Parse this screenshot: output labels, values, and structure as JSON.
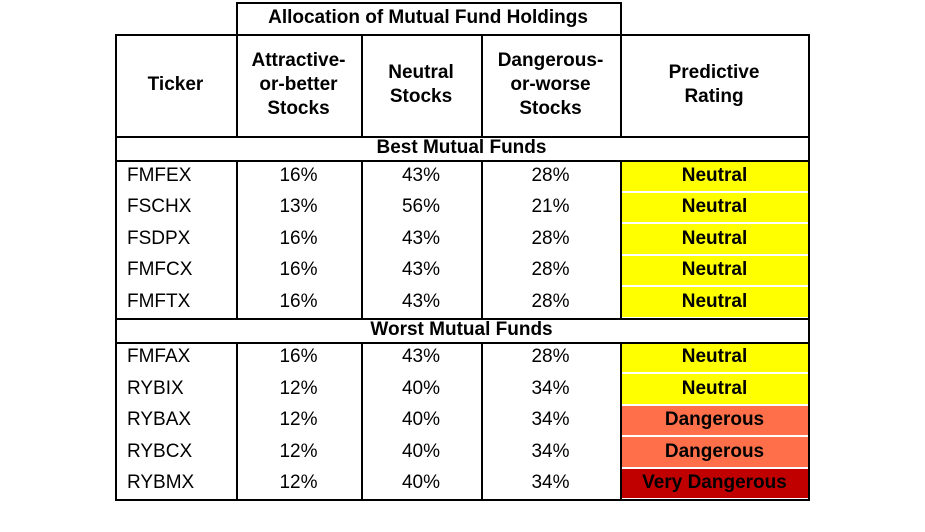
{
  "table": {
    "group_header": "Allocation of Mutual Fund Holdings",
    "columns": [
      "Ticker",
      "Attractive-\nor-better\nStocks",
      "Neutral\nStocks",
      "Dangerous-\nor-worse\nStocks",
      "Predictive\nRating"
    ],
    "rating_colors": {
      "Neutral": "#ffff00",
      "Dangerous": "#ff704a",
      "Very Dangerous": "#c00000"
    },
    "sections": [
      {
        "title": "Best Mutual Funds",
        "rows": [
          {
            "ticker": "FMFEX",
            "attractive": "16%",
            "neutral": "43%",
            "dangerous": "28%",
            "rating": "Neutral"
          },
          {
            "ticker": "FSCHX",
            "attractive": "13%",
            "neutral": "56%",
            "dangerous": "21%",
            "rating": "Neutral"
          },
          {
            "ticker": "FSDPX",
            "attractive": "16%",
            "neutral": "43%",
            "dangerous": "28%",
            "rating": "Neutral"
          },
          {
            "ticker": "FMFCX",
            "attractive": "16%",
            "neutral": "43%",
            "dangerous": "28%",
            "rating": "Neutral"
          },
          {
            "ticker": "FMFTX",
            "attractive": "16%",
            "neutral": "43%",
            "dangerous": "28%",
            "rating": "Neutral"
          }
        ]
      },
      {
        "title": "Worst Mutual Funds",
        "rows": [
          {
            "ticker": "FMFAX",
            "attractive": "16%",
            "neutral": "43%",
            "dangerous": "28%",
            "rating": "Neutral"
          },
          {
            "ticker": "RYBIX",
            "attractive": "12%",
            "neutral": "40%",
            "dangerous": "34%",
            "rating": "Neutral"
          },
          {
            "ticker": "RYBAX",
            "attractive": "12%",
            "neutral": "40%",
            "dangerous": "34%",
            "rating": "Dangerous"
          },
          {
            "ticker": "RYBCX",
            "attractive": "12%",
            "neutral": "40%",
            "dangerous": "34%",
            "rating": "Dangerous"
          },
          {
            "ticker": "RYBMX",
            "attractive": "12%",
            "neutral": "40%",
            "dangerous": "34%",
            "rating": "Very Dangerous"
          }
        ]
      }
    ]
  }
}
